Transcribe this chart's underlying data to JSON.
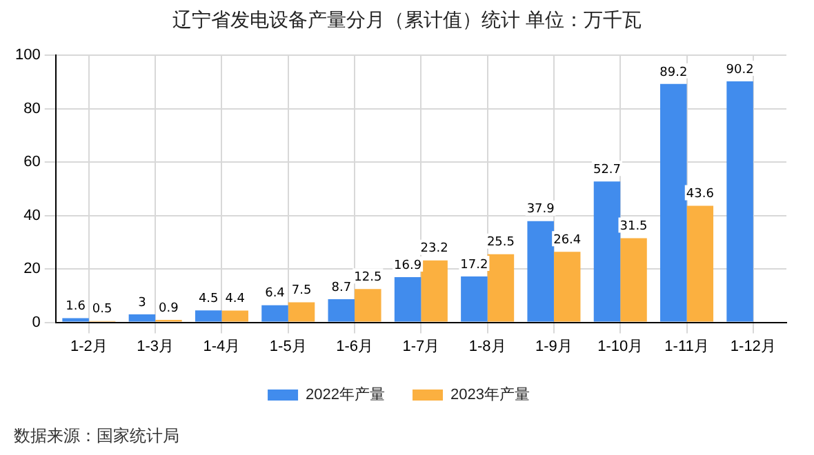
{
  "chart_data": {
    "type": "bar",
    "title": "辽宁省发电设备产量分月（累计值）统计 单位：万千瓦",
    "categories": [
      "1-2月",
      "1-3月",
      "1-4月",
      "1-5月",
      "1-6月",
      "1-7月",
      "1-8月",
      "1-9月",
      "1-10月",
      "1-11月",
      "1-12月"
    ],
    "series": [
      {
        "name": "2022年产量",
        "color": "#418ced",
        "values": [
          1.6,
          3,
          4.5,
          6.4,
          8.7,
          16.9,
          17.2,
          37.9,
          52.7,
          89.2,
          90.2
        ]
      },
      {
        "name": "2023年产量",
        "color": "#fbb040",
        "values": [
          0.5,
          0.9,
          4.4,
          7.5,
          12.5,
          23.2,
          25.5,
          26.4,
          31.5,
          43.6,
          null
        ]
      }
    ],
    "ylim": [
      0,
      100
    ],
    "yticks": [
      0,
      20,
      40,
      60,
      80,
      100
    ],
    "grid": true,
    "legend": "bottom",
    "data_labels": true,
    "annotations": [
      "数据来源：国家统计局"
    ]
  }
}
